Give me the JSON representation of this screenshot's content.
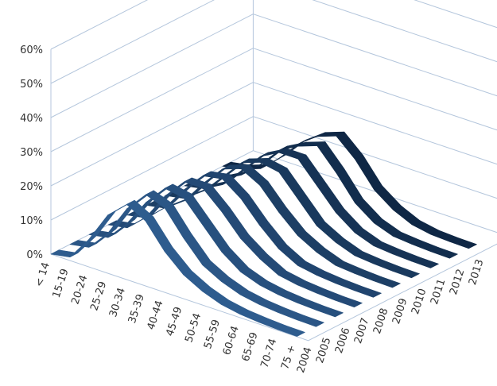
{
  "chart_data": {
    "type": "line",
    "subtype": "3d-ribbon",
    "title": "",
    "xlabel": "",
    "ylabel": "",
    "ylim": [
      0,
      0.6
    ],
    "y_ticks": [
      "0%",
      "10%",
      "20%",
      "30%",
      "40%",
      "50%",
      "60%"
    ],
    "y_tick_values": [
      0,
      0.1,
      0.2,
      0.3,
      0.4,
      0.5,
      0.6
    ],
    "categories": [
      "< 14",
      "15-19",
      "20-24",
      "25-29",
      "30-34",
      "35-39",
      "40-44",
      "45-49",
      "50-54",
      "55-59",
      "60-64",
      "65-69",
      "70-74",
      "75 +"
    ],
    "series_labels": [
      "2004",
      "2005",
      "2006",
      "2007",
      "2008",
      "2009",
      "2010",
      "2011",
      "2012",
      "2013"
    ],
    "series": [
      {
        "values": [
          0,
          0.01,
          0.08,
          0.17,
          0.22,
          0.19,
          0.12,
          0.07,
          0.04,
          0.02,
          0.01,
          0.005,
          0.002,
          0.001
        ]
      },
      {
        "values": [
          0,
          0.01,
          0.07,
          0.16,
          0.22,
          0.2,
          0.13,
          0.07,
          0.04,
          0.02,
          0.01,
          0.005,
          0.002,
          0.001
        ]
      },
      {
        "values": [
          0,
          0.01,
          0.07,
          0.15,
          0.21,
          0.2,
          0.14,
          0.08,
          0.04,
          0.02,
          0.01,
          0.005,
          0.002,
          0.001
        ]
      },
      {
        "values": [
          0,
          0.01,
          0.06,
          0.14,
          0.2,
          0.2,
          0.15,
          0.09,
          0.05,
          0.02,
          0.01,
          0.005,
          0.002,
          0.001
        ]
      },
      {
        "values": [
          0,
          0.01,
          0.06,
          0.13,
          0.19,
          0.2,
          0.16,
          0.1,
          0.05,
          0.02,
          0.01,
          0.005,
          0.002,
          0.001
        ]
      },
      {
        "values": [
          0,
          0.01,
          0.05,
          0.12,
          0.18,
          0.2,
          0.17,
          0.11,
          0.06,
          0.03,
          0.01,
          0.005,
          0.002,
          0.001
        ]
      },
      {
        "values": [
          0,
          0.01,
          0.05,
          0.11,
          0.17,
          0.19,
          0.18,
          0.12,
          0.06,
          0.03,
          0.01,
          0.005,
          0.002,
          0.001
        ]
      },
      {
        "values": [
          0,
          0.01,
          0.04,
          0.1,
          0.16,
          0.19,
          0.19,
          0.13,
          0.07,
          0.03,
          0.01,
          0.005,
          0.002,
          0.001
        ]
      },
      {
        "values": [
          0,
          0.01,
          0.04,
          0.09,
          0.15,
          0.18,
          0.2,
          0.14,
          0.07,
          0.03,
          0.01,
          0.005,
          0.002,
          0.001
        ]
      },
      {
        "values": [
          0,
          0.01,
          0.03,
          0.08,
          0.14,
          0.18,
          0.2,
          0.15,
          0.08,
          0.04,
          0.015,
          0.005,
          0.002,
          0.001
        ]
      }
    ],
    "grid": true,
    "legend": "none",
    "colors": {
      "ribbon_front": "#2e5c8e",
      "ribbon_back": "#0f2745",
      "ribbon_outline": "#ffffff",
      "grid": "#b4c6dc",
      "text": "#333333"
    }
  }
}
